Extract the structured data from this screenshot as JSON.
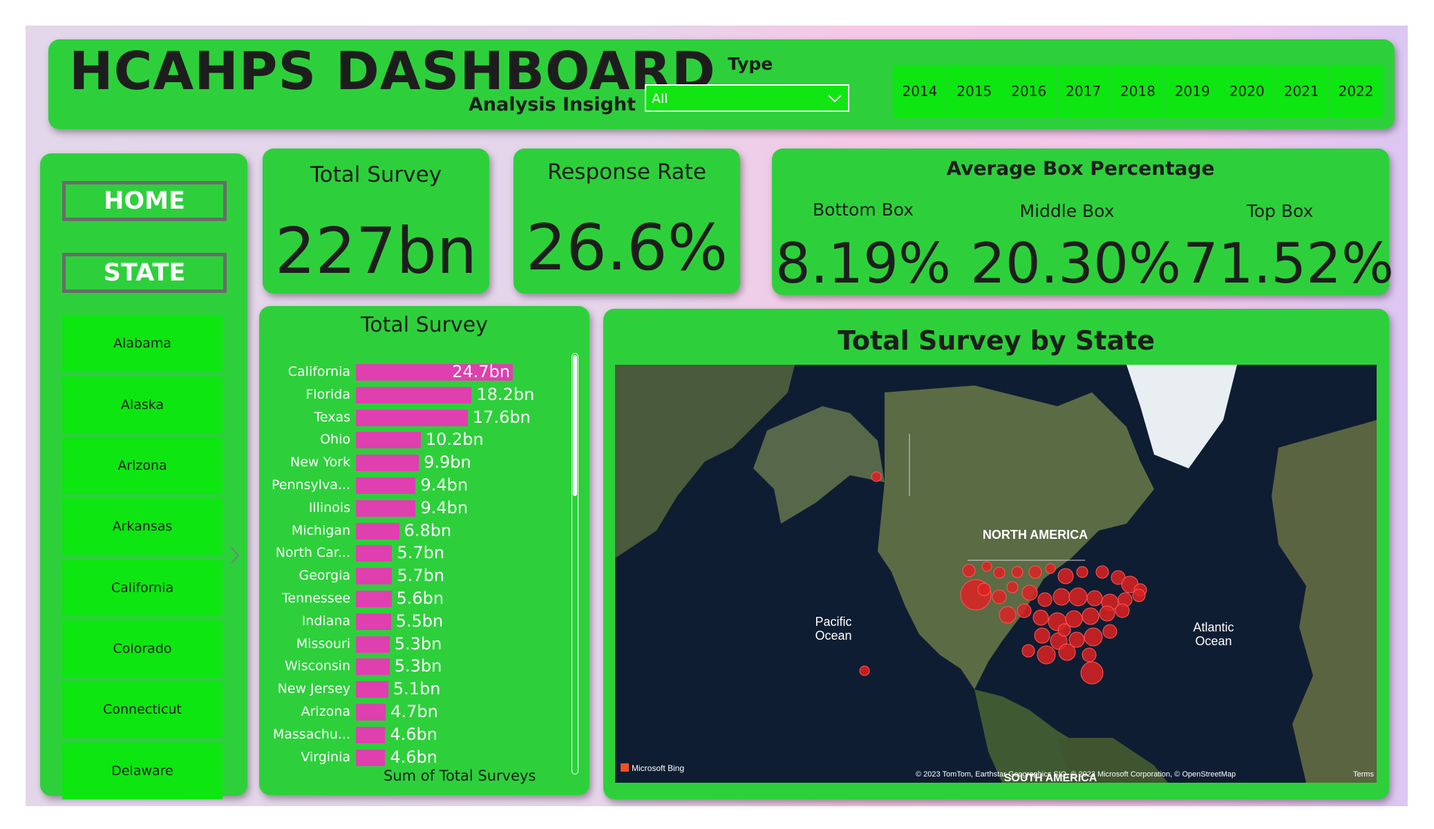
{
  "header": {
    "title": "HCAHPS DASHBOARD",
    "subtitle": "Analysis Insight",
    "type_label": "Type",
    "type_value": "All",
    "years": [
      "2014",
      "2015",
      "2016",
      "2017",
      "2018",
      "2019",
      "2020",
      "2021",
      "2022"
    ]
  },
  "nav": {
    "home": "HOME",
    "state": "STATE",
    "states": [
      "Alabama",
      "Alaska",
      "Arizona",
      "Arkansas",
      "California",
      "Colorado",
      "Connecticut",
      "Delaware"
    ]
  },
  "kpi": {
    "total_survey_label": "Total Survey",
    "total_survey_value": "227bn",
    "response_rate_label": "Response Rate",
    "response_rate_value": "26.6%"
  },
  "box": {
    "title": "Average Box Percentage",
    "bottom_label": "Bottom Box",
    "bottom_value": "8.19%",
    "middle_label": "Middle Box",
    "middle_value": "20.30%",
    "top_label": "Top Box",
    "top_value": "71.52%"
  },
  "chart_data": {
    "type": "bar",
    "title": "Total Survey",
    "xlabel": "Sum of Total Surveys",
    "ylabel": "",
    "unit": "bn",
    "categories": [
      "California",
      "Florida",
      "Texas",
      "Ohio",
      "New York",
      "Pennsylva...",
      "Illinois",
      "Michigan",
      "North Car...",
      "Georgia",
      "Tennessee",
      "Indiana",
      "Missouri",
      "Wisconsin",
      "New Jersey",
      "Arizona",
      "Massachu...",
      "Virginia"
    ],
    "values": [
      24.7,
      18.2,
      17.6,
      10.2,
      9.9,
      9.4,
      9.4,
      6.8,
      5.7,
      5.7,
      5.6,
      5.5,
      5.3,
      5.3,
      5.1,
      4.7,
      4.6,
      4.6
    ],
    "value_labels": [
      "24.7bn",
      "18.2bn",
      "17.6bn",
      "10.2bn",
      "9.9bn",
      "9.4bn",
      "9.4bn",
      "6.8bn",
      "5.7bn",
      "5.7bn",
      "5.6bn",
      "5.5bn",
      "5.3bn",
      "5.3bn",
      "5.1bn",
      "4.7bn",
      "4.6bn",
      "4.6bn"
    ],
    "xlim": [
      0,
      25
    ],
    "colors": {
      "bar": "#e03fb0"
    }
  },
  "map": {
    "title": "Total Survey by State",
    "labels": {
      "north_america": "NORTH AMERICA",
      "pacific_line1": "Pacific",
      "pacific_line2": "Ocean",
      "atlantic_line1": "Atlantic",
      "atlantic_line2": "Ocean",
      "south_america": "SOUTH AMERICA"
    },
    "bing": "Microsoft Bing",
    "attribution": "© 2023 TomTom, Earthstar Geographics SIO, © 2023 Microsoft Corporation, © OpenStreetMap",
    "terms": "Terms"
  },
  "colors": {
    "panel": "#2dd03b",
    "button": "#0de610",
    "bubble": "#dd2222"
  }
}
